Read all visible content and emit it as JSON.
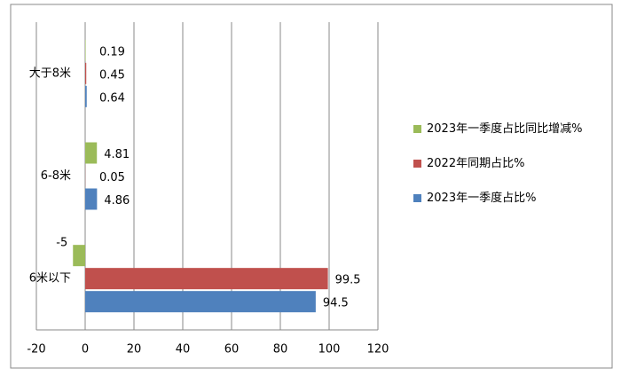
{
  "chart_data": {
    "type": "hbar",
    "categories": [
      "大于8米",
      "6-8米",
      "6米以下"
    ],
    "series": [
      {
        "name": "2023年一季度占比同比增减%",
        "color": "#9bbb59",
        "values": [
          0.19,
          4.81,
          -5
        ]
      },
      {
        "name": "2022年同期占比%",
        "color": "#c0504d",
        "values": [
          0.45,
          0.05,
          99.5
        ]
      },
      {
        "name": "2023年一季度占比%",
        "color": "#4f81bd",
        "values": [
          0.64,
          4.86,
          94.5
        ]
      }
    ],
    "xlim": [
      -20,
      120
    ],
    "xticks": [
      -20,
      0,
      20,
      40,
      60,
      80,
      100,
      120
    ],
    "grid": true,
    "legend": "right"
  }
}
